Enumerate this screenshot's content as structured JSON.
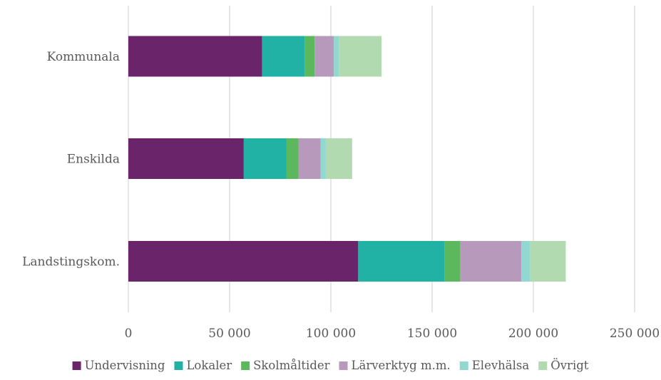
{
  "chart_data": {
    "type": "bar",
    "orientation": "horizontal",
    "stacked": true,
    "title": "",
    "xlabel": "",
    "ylabel": "",
    "categories": [
      "Kommunala",
      "Enskilda",
      "Landstingskom."
    ],
    "series": [
      {
        "name": "Undervisning",
        "color": "#6a2469",
        "values": [
          66000,
          57000,
          113500
        ]
      },
      {
        "name": "Lokaler",
        "color": "#21b1a5",
        "values": [
          21000,
          21000,
          42500
        ]
      },
      {
        "name": "Skolmåltider",
        "color": "#5cb85c",
        "values": [
          5000,
          6000,
          8000
        ]
      },
      {
        "name": "Lärverktyg m.m.",
        "color": "#b799bb",
        "values": [
          9500,
          11000,
          30000
        ]
      },
      {
        "name": "Elevhälsa",
        "color": "#91d8d0",
        "values": [
          2500,
          2500,
          4500
        ]
      },
      {
        "name": "Övrigt",
        "color": "#b1dab0",
        "values": [
          21000,
          13000,
          17500
        ]
      }
    ],
    "xlim": [
      0,
      250000
    ],
    "xticks": [
      0,
      50000,
      100000,
      150000,
      200000,
      250000
    ],
    "xtick_labels": [
      "0",
      "50 000",
      "100 000",
      "150 000",
      "200 000",
      "250 000"
    ],
    "grid": true,
    "legend_position": "bottom"
  }
}
